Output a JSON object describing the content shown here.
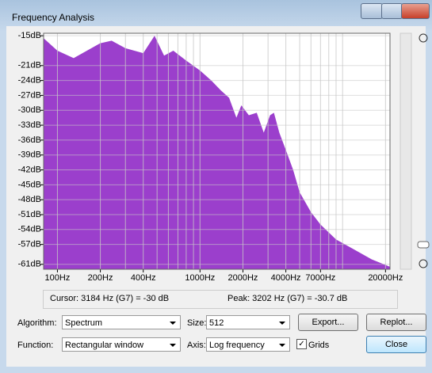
{
  "window": {
    "title": "Frequency Analysis"
  },
  "spectrum": {
    "type": "area",
    "color": "#9b3fcc",
    "log_x": true,
    "grid": true,
    "x": [
      80,
      100,
      130,
      200,
      240,
      300,
      400,
      480,
      560,
      650,
      800,
      1000,
      1200,
      1400,
      1600,
      1800,
      1950,
      2200,
      2500,
      2800,
      3100,
      3300,
      3600,
      4000,
      4500,
      5000,
      6000,
      7000,
      9000,
      12000,
      16000,
      21500
    ],
    "values": [
      -15.5,
      -18,
      -19.5,
      -16.5,
      -16,
      -17.5,
      -18.5,
      -15,
      -19,
      -18,
      -20,
      -22,
      -24,
      -26,
      -27.5,
      -31.5,
      -29,
      -31,
      -30.5,
      -34.5,
      -31,
      -30.5,
      -34.5,
      -38,
      -42,
      -46.5,
      -50.5,
      -53,
      -56,
      -58,
      -60,
      -61.5
    ],
    "xlim": [
      80,
      21500
    ],
    "ylim": [
      -62,
      -14.5
    ],
    "xticks": [
      {
        "value": 100,
        "label": "100Hz"
      },
      {
        "value": 200,
        "label": "200Hz"
      },
      {
        "value": 400,
        "label": "400Hz"
      },
      {
        "value": 1000,
        "label": "1000Hz"
      },
      {
        "value": 2000,
        "label": "2000Hz"
      },
      {
        "value": 4000,
        "label": "4000Hz"
      },
      {
        "value": 7000,
        "label": "7000Hz"
      },
      {
        "value": 20000,
        "label": "20000Hz"
      }
    ],
    "xgrid": [
      100,
      200,
      300,
      400,
      500,
      600,
      700,
      800,
      900,
      1000,
      2000,
      3000,
      4000,
      5000,
      6000,
      7000,
      8000,
      9000,
      10000,
      20000
    ],
    "yticks": [
      {
        "value": -15,
        "label": "-15dB"
      },
      {
        "value": -21,
        "label": "-21dB"
      },
      {
        "value": -24,
        "label": "-24dB"
      },
      {
        "value": -27,
        "label": "-27dB"
      },
      {
        "value": -30,
        "label": "-30dB"
      },
      {
        "value": -33,
        "label": "-33dB"
      },
      {
        "value": -36,
        "label": "-36dB"
      },
      {
        "value": -39,
        "label": "-39dB"
      },
      {
        "value": -42,
        "label": "-42dB"
      },
      {
        "value": -45,
        "label": "-45dB"
      },
      {
        "value": -48,
        "label": "-48dB"
      },
      {
        "value": -51,
        "label": "-51dB"
      },
      {
        "value": -54,
        "label": "-54dB"
      },
      {
        "value": -57,
        "label": "-57dB"
      },
      {
        "value": -61,
        "label": "-61dB"
      }
    ]
  },
  "status": {
    "cursor": "Cursor: 3184 Hz (G7) = -30 dB",
    "peak": "Peak: 3202 Hz (G7) = -30.7 dB"
  },
  "controls": {
    "algorithm_label": "Algorithm:",
    "algorithm": "Spectrum",
    "size_label": "Size:",
    "size": "512",
    "export": "Export...",
    "replot": "Replot...",
    "function_label": "Function:",
    "function": "Rectangular window",
    "axis_label": "Axis:",
    "axis": "Log frequency",
    "grids": "Grids",
    "close": "Close"
  }
}
